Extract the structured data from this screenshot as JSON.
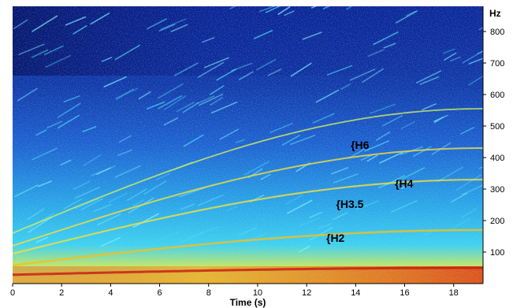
{
  "chart_data": {
    "type": "heatmap",
    "subtype": "spectrogram",
    "title": "",
    "xlabel": "Time (s)",
    "ylabel": "Hz",
    "xlim": [
      0,
      19.2
    ],
    "ylim": [
      0,
      880
    ],
    "x_ticks": [
      0,
      2,
      4,
      6,
      8,
      10,
      12,
      14,
      16,
      18
    ],
    "y_ticks": [
      100,
      200,
      300,
      400,
      500,
      600,
      700,
      800
    ],
    "colormap": [
      "#0a1a8c",
      "#1e50c8",
      "#2aa0e6",
      "#40e0f0",
      "#f0f040",
      "#f0a020",
      "#d02010"
    ],
    "annotations": [
      {
        "label": "{H6",
        "time": 13.8,
        "freq": 440
      },
      {
        "label": "{H4",
        "time": 15.6,
        "freq": 318
      },
      {
        "label": "{H3.5",
        "time": 13.2,
        "freq": 252
      },
      {
        "label": "{H2",
        "time": 12.8,
        "freq": 145
      }
    ]
  }
}
